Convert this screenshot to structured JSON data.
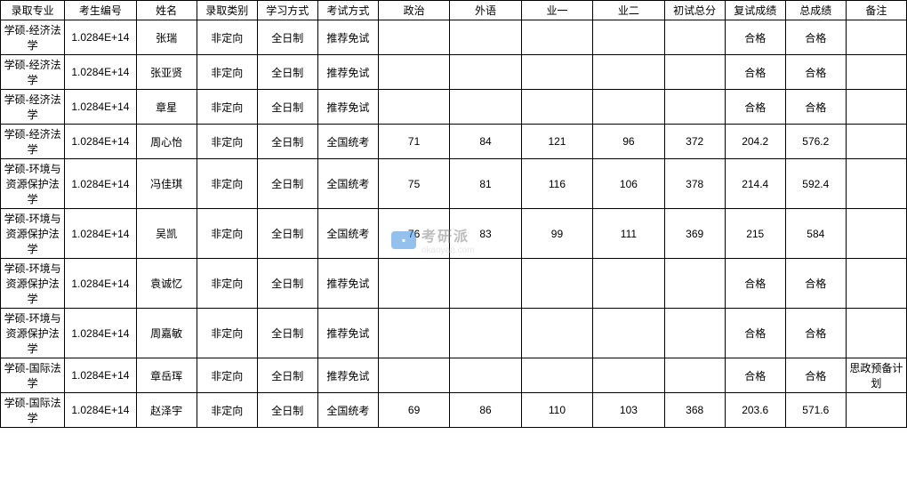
{
  "table": {
    "headers": [
      "录取专业",
      "考生编号",
      "姓名",
      "录取类别",
      "学习方式",
      "考试方式",
      "政治",
      "外语",
      "业一",
      "业二",
      "初试总分",
      "复试成绩",
      "总成绩",
      "备注"
    ],
    "rows": [
      {
        "height": "tall-row",
        "cells": [
          "学硕-经济法学",
          "1.0284E+14",
          "张瑞",
          "非定向",
          "全日制",
          "推荐免试",
          "",
          "",
          "",
          "",
          "",
          "合格",
          "合格",
          ""
        ]
      },
      {
        "height": "tall-row",
        "cells": [
          "学硕-经济法学",
          "1.0284E+14",
          "张亚贤",
          "非定向",
          "全日制",
          "推荐免试",
          "",
          "",
          "",
          "",
          "",
          "合格",
          "合格",
          ""
        ]
      },
      {
        "height": "tall-row",
        "cells": [
          "学硕-经济法学",
          "1.0284E+14",
          "章星",
          "非定向",
          "全日制",
          "推荐免试",
          "",
          "",
          "",
          "",
          "",
          "合格",
          "合格",
          ""
        ]
      },
      {
        "height": "tall-row",
        "cells": [
          "学硕-经济法学",
          "1.0284E+14",
          "周心怡",
          "非定向",
          "全日制",
          "全国统考",
          "71",
          "84",
          "121",
          "96",
          "372",
          "204.2",
          "576.2",
          ""
        ]
      },
      {
        "height": "taller-row",
        "cells": [
          "学硕-环境与资源保护法学",
          "1.0284E+14",
          "冯佳琪",
          "非定向",
          "全日制",
          "全国统考",
          "75",
          "81",
          "116",
          "106",
          "378",
          "214.4",
          "592.4",
          ""
        ]
      },
      {
        "height": "taller-row",
        "cells": [
          "学硕-环境与资源保护法学",
          "1.0284E+14",
          "吴凯",
          "非定向",
          "全日制",
          "全国统考",
          "76",
          "83",
          "99",
          "111",
          "369",
          "215",
          "584",
          ""
        ]
      },
      {
        "height": "taller-row",
        "cells": [
          "学硕-环境与资源保护法学",
          "1.0284E+14",
          "袁诚忆",
          "非定向",
          "全日制",
          "推荐免试",
          "",
          "",
          "",
          "",
          "",
          "合格",
          "合格",
          ""
        ]
      },
      {
        "height": "taller-row",
        "cells": [
          "学硕-环境与资源保护法学",
          "1.0284E+14",
          "周嘉敏",
          "非定向",
          "全日制",
          "推荐免试",
          "",
          "",
          "",
          "",
          "",
          "合格",
          "合格",
          ""
        ]
      },
      {
        "height": "tall-row",
        "cells": [
          "学硕-国际法学",
          "1.0284E+14",
          "章岳珲",
          "非定向",
          "全日制",
          "推荐免试",
          "",
          "",
          "",
          "",
          "",
          "合格",
          "合格",
          "思政预备计划"
        ]
      },
      {
        "height": "tall-row",
        "cells": [
          "学硕-国际法学",
          "1.0284E+14",
          "赵泽宇",
          "非定向",
          "全日制",
          "全国统考",
          "69",
          "86",
          "110",
          "103",
          "368",
          "203.6",
          "571.6",
          ""
        ]
      }
    ]
  },
  "watermark": {
    "main": "考研派",
    "sub": "okaoyan.com"
  }
}
